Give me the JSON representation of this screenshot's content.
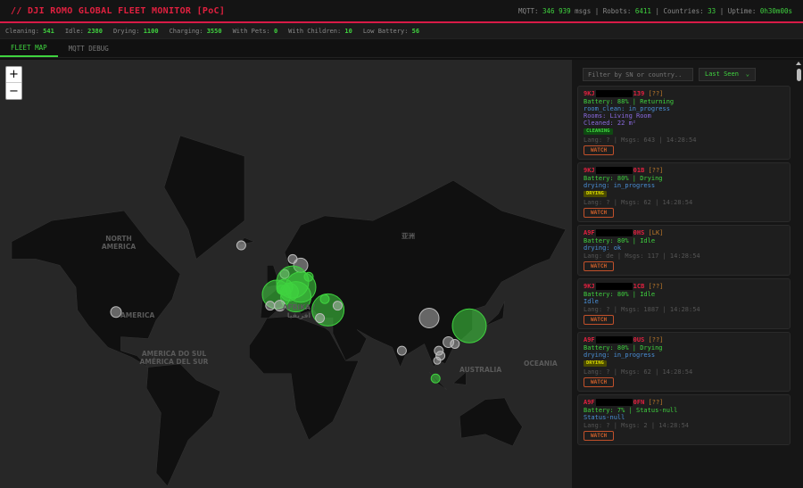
{
  "header": {
    "title": "// DJI ROMO GLOBAL FLEET MONITOR [PoC]",
    "mqtt_label": "MQTT:",
    "mqtt_value": "346 939",
    "mqtt_unit": "msgs",
    "robots_label": "Robots:",
    "robots_value": "6411",
    "countries_label": "Countries:",
    "countries_value": "33",
    "uptime_label": "Uptime:",
    "uptime_value": "0h30m00s"
  },
  "stats": [
    {
      "label": "Cleaning:",
      "value": "541"
    },
    {
      "label": "Idle:",
      "value": "2380"
    },
    {
      "label": "Drying:",
      "value": "1100"
    },
    {
      "label": "Charging:",
      "value": "3550"
    },
    {
      "label": "With Pets:",
      "value": "0"
    },
    {
      "label": "With Children:",
      "value": "10"
    },
    {
      "label": "Low Battery:",
      "value": "56"
    }
  ],
  "tabs": [
    {
      "label": "FLEET MAP",
      "active": true
    },
    {
      "label": "MQTT DEBUG",
      "active": false
    }
  ],
  "map": {
    "zoom_in": "+",
    "zoom_out": "−",
    "labels": {
      "north_america": "NORTH AMERICA",
      "america": "AMERICA",
      "south_america": "AMERICA DO SUL AMÉRICA DEL SUR",
      "africa": "AFRIKA / افريقيا",
      "asia": "亚洲",
      "australia": "AUSTRALIA",
      "oceania": "OCEANIA"
    },
    "colors": {
      "ocean": "#272727",
      "land": "#101010",
      "active_marker": "#3fd33f",
      "idle_marker": "#bbbbbb"
    }
  },
  "sidebar": {
    "filter_placeholder": "Filter by SN or country..",
    "sort_value": "Last Seen",
    "cards": [
      {
        "sn_prefix": "9KJ",
        "sn_suffix": "139",
        "country": "[??]",
        "battery": "Battery: 88% | Returning",
        "status": "room_clean: in_progress",
        "rooms": "Rooms: Living Room",
        "cleaned": "Cleaned: 22 m²",
        "badge": "CLEANING",
        "badge_type": "clean",
        "meta": "Lang: ? | Msgs: 643 | 14:28:54",
        "watch": "WATCH"
      },
      {
        "sn_prefix": "9KJ",
        "sn_suffix": "01B",
        "country": "[??]",
        "battery": "Battery: 80% | Drying",
        "status": "drying: in_progress",
        "badge": "DRYING",
        "badge_type": "dry",
        "meta": "Lang: ? | Msgs: 62 | 14:28:54",
        "watch": "WATCH"
      },
      {
        "sn_prefix": "A9F",
        "sn_suffix": "0HS",
        "country": "[LK]",
        "battery": "Battery: 80% | Idle",
        "status": "drying: ok",
        "meta": "Lang: de | Msgs: 117 | 14:28:54",
        "watch": "WATCH"
      },
      {
        "sn_prefix": "9KJ",
        "sn_suffix": "1CB",
        "country": "[??]",
        "battery": "Battery: 80% | Idle",
        "status": "Idle",
        "meta": "Lang: ? | Msgs: 1887 | 14:28:54",
        "watch": "WATCH"
      },
      {
        "sn_prefix": "A9F",
        "sn_suffix": "0US",
        "country": "[??]",
        "battery": "Battery: 80% | Drying",
        "status": "drying: in_progress",
        "badge": "DRYING",
        "badge_type": "dry",
        "meta": "Lang: ? | Msgs: 62 | 14:28:54",
        "watch": "WATCH"
      },
      {
        "sn_prefix": "A9F",
        "sn_suffix": "0FN",
        "country": "[??]",
        "battery": "Battery: 7% | Status-null",
        "status": "Status-null",
        "meta": "Lang: ? | Msgs: 2 | 14:28:54",
        "watch": "WATCH"
      }
    ]
  }
}
